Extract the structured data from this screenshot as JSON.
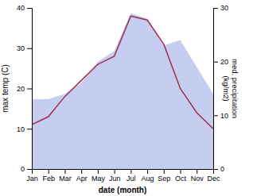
{
  "chart_data": {
    "type": "line",
    "categories": [
      "Jan",
      "Feb",
      "Mar",
      "Apr",
      "May",
      "Jun",
      "Jul",
      "Aug",
      "Sep",
      "Oct",
      "Nov",
      "Dec"
    ],
    "xlabel": "date (month)",
    "ylabel": "max temp (C)",
    "y2label": "med. precipitation\n(kg/m2)",
    "ylim": [
      0,
      40
    ],
    "yticks": [
      0,
      10,
      20,
      30,
      40
    ],
    "y2lim": [
      0,
      30
    ],
    "y2ticks": [
      0,
      10,
      20,
      30
    ],
    "series": [
      {
        "type": "area",
        "axis": "y2",
        "color": "#c5cef0",
        "values": [
          13,
          13,
          14,
          16,
          20,
          22,
          29,
          28,
          23,
          24,
          19,
          14
        ]
      },
      {
        "type": "line",
        "color": "#a03050",
        "values": [
          11,
          13,
          18,
          22,
          26,
          28,
          38,
          37,
          31,
          20,
          14,
          10
        ]
      }
    ]
  }
}
